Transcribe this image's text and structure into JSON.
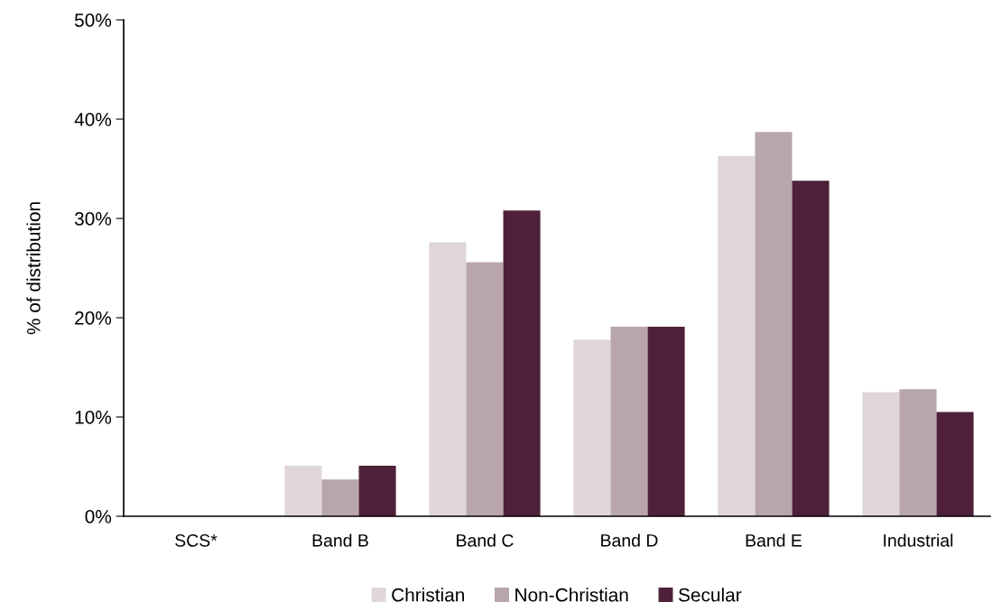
{
  "chart_data": {
    "type": "bar",
    "ylabel": "% of distribution",
    "categories": [
      "SCS*",
      "Band B",
      "Band C",
      "Band D",
      "Band E",
      "Industrial"
    ],
    "series": [
      {
        "name": "Christian",
        "color": "#e0d6d8",
        "values": [
          0,
          5.1,
          27.6,
          17.8,
          36.3,
          12.5
        ]
      },
      {
        "name": "Non-Christian",
        "color": "#b9a6aa",
        "values": [
          0,
          3.7,
          25.6,
          19.1,
          38.7,
          12.8
        ]
      },
      {
        "name": "Secular",
        "color": "#4f2039",
        "values": [
          0,
          5.1,
          30.8,
          19.1,
          33.8,
          10.5
        ]
      }
    ],
    "ylim": [
      0,
      50
    ],
    "yticks": [
      {
        "value": 0,
        "label": "0%"
      },
      {
        "value": 10,
        "label": "10%"
      },
      {
        "value": 20,
        "label": "20%"
      },
      {
        "value": 30,
        "label": "30%"
      },
      {
        "value": 40,
        "label": "40%"
      },
      {
        "value": 50,
        "label": "50%"
      }
    ],
    "grid": false,
    "legend": "bottom"
  }
}
